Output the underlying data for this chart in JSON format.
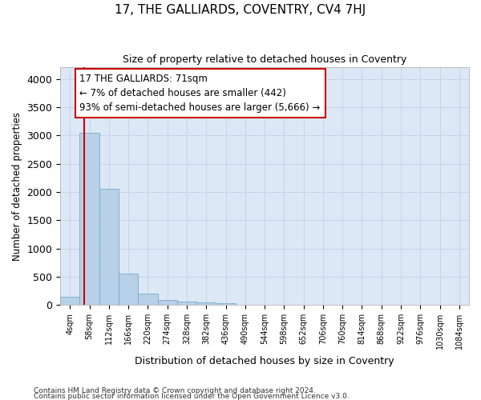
{
  "title": "17, THE GALLIARDS, COVENTRY, CV4 7HJ",
  "subtitle": "Size of property relative to detached houses in Coventry",
  "xlabel": "Distribution of detached houses by size in Coventry",
  "ylabel": "Number of detached properties",
  "bin_labels": [
    "4sqm",
    "58sqm",
    "112sqm",
    "166sqm",
    "220sqm",
    "274sqm",
    "328sqm",
    "382sqm",
    "436sqm",
    "490sqm",
    "544sqm",
    "598sqm",
    "652sqm",
    "706sqm",
    "760sqm",
    "814sqm",
    "868sqm",
    "922sqm",
    "976sqm",
    "1030sqm",
    "1084sqm"
  ],
  "bar_heights": [
    140,
    3050,
    2060,
    550,
    200,
    90,
    60,
    45,
    35,
    0,
    0,
    0,
    0,
    0,
    0,
    0,
    0,
    0,
    0,
    0,
    0
  ],
  "bar_color": "#b8d0e8",
  "bar_edge_color": "#7aaac8",
  "annotation_text": "17 THE GALLIARDS: 71sqm\n← 7% of detached houses are smaller (442)\n93% of semi-detached houses are larger (5,666) →",
  "annotation_box_color": "#ffffff",
  "annotation_box_edge_color": "#cc0000",
  "subject_line_color": "#cc0000",
  "grid_color": "#c8d4e8",
  "bg_color": "#dce8f5",
  "footer_line1": "Contains HM Land Registry data © Crown copyright and database right 2024.",
  "footer_line2": "Contains public sector information licensed under the Open Government Licence v3.0.",
  "ylim": [
    0,
    4200
  ],
  "yticks": [
    0,
    500,
    1000,
    1500,
    2000,
    2500,
    3000,
    3500,
    4000
  ]
}
